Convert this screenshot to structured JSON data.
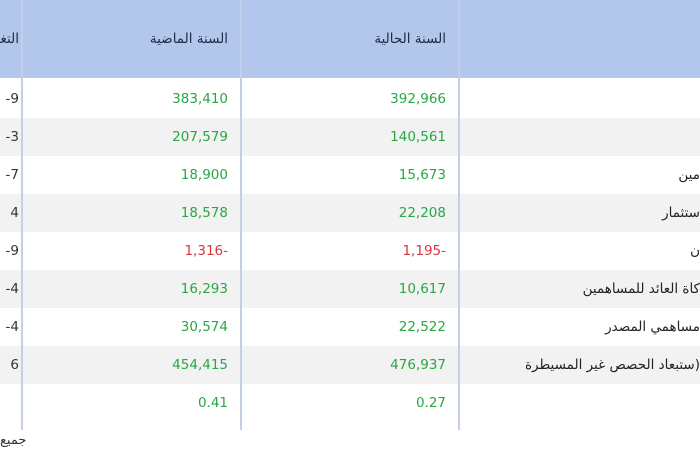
{
  "table": {
    "headers": {
      "change": "التغير",
      "last_year": "السنة الماضية",
      "current_year": "السنة الحالية",
      "item": ""
    },
    "rows": [
      {
        "item": "",
        "current": "392,966",
        "last": "383,410",
        "change": "-9",
        "current_sign": "pos",
        "last_sign": "pos"
      },
      {
        "item": "",
        "current": "140,561",
        "last": "207,579",
        "change": "-3",
        "current_sign": "pos",
        "last_sign": "pos"
      },
      {
        "item": "مين",
        "current": "15,673",
        "last": "18,900",
        "change": "-7",
        "current_sign": "pos",
        "last_sign": "pos"
      },
      {
        "item": "ستثمار",
        "current": "22,208",
        "last": "18,578",
        "change": "4",
        "current_sign": "pos",
        "last_sign": "pos"
      },
      {
        "item": "ن",
        "current": "1,195-",
        "last": "1,316-",
        "change": "-9",
        "current_sign": "neg",
        "last_sign": "neg"
      },
      {
        "item": "كاة العائد للمساهمين",
        "current": "10,617",
        "last": "16,293",
        "change": "-4",
        "current_sign": "pos",
        "last_sign": "pos"
      },
      {
        "item": "مساهمي المصدر",
        "current": "22,522",
        "last": "30,574",
        "change": "-4",
        "current_sign": "pos",
        "last_sign": "pos"
      },
      {
        "item": "ستبعاد الحصص غير المسيطرة)",
        "current": "476,937",
        "last": "454,415",
        "change": "6",
        "current_sign": "pos",
        "last_sign": "pos"
      },
      {
        "item": "",
        "current": "0.27",
        "last": "0.41",
        "change": "",
        "current_sign": "pos",
        "last_sign": "pos"
      }
    ]
  },
  "footnote": "جميع"
}
